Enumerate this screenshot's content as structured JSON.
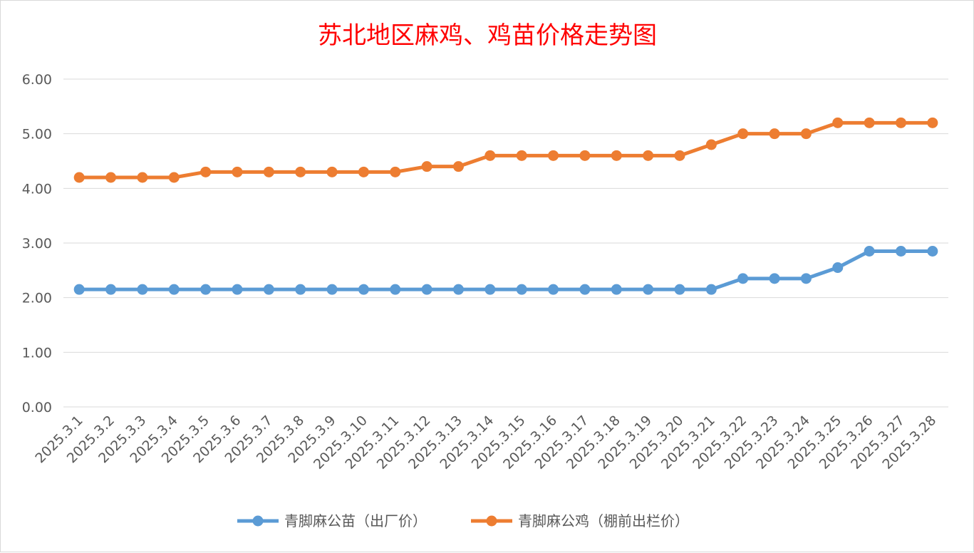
{
  "chart_data": {
    "type": "line",
    "title": "苏北地区麻鸡、鸡苗价格走势图",
    "xlabel": "",
    "ylabel": "",
    "ylim": [
      0,
      6
    ],
    "yticks": [
      "0.00",
      "1.00",
      "2.00",
      "3.00",
      "4.00",
      "5.00",
      "6.00"
    ],
    "grid": true,
    "legend_position": "bottom",
    "categories": [
      "2025.3.1",
      "2025.3.2",
      "2025.3.3",
      "2025.3.4",
      "2025.3.5",
      "2025.3.6",
      "2025.3.7",
      "2025.3.8",
      "2025.3.9",
      "2025.3.10",
      "2025.3.11",
      "2025.3.12",
      "2025.3.13",
      "2025.3.14",
      "2025.3.15",
      "2025.3.16",
      "2025.3.17",
      "2025.3.18",
      "2025.3.19",
      "2025.3.20",
      "2025.3.21",
      "2025.3.22",
      "2025.3.23",
      "2025.3.24",
      "2025.3.25",
      "2025.3.26",
      "2025.3.27",
      "2025.3.28"
    ],
    "series": [
      {
        "name": "青脚麻公苗（出厂价）",
        "color": "#5b9bd5",
        "values": [
          2.15,
          2.15,
          2.15,
          2.15,
          2.15,
          2.15,
          2.15,
          2.15,
          2.15,
          2.15,
          2.15,
          2.15,
          2.15,
          2.15,
          2.15,
          2.15,
          2.15,
          2.15,
          2.15,
          2.15,
          2.15,
          2.35,
          2.35,
          2.35,
          2.55,
          2.85,
          2.85,
          2.85
        ]
      },
      {
        "name": "青脚麻公鸡（棚前出栏价）",
        "color": "#ed7d31",
        "values": [
          4.2,
          4.2,
          4.2,
          4.2,
          4.3,
          4.3,
          4.3,
          4.3,
          4.3,
          4.3,
          4.3,
          4.4,
          4.4,
          4.6,
          4.6,
          4.6,
          4.6,
          4.6,
          4.6,
          4.6,
          4.8,
          5.0,
          5.0,
          5.0,
          5.2,
          5.2,
          5.2,
          5.2
        ]
      }
    ]
  }
}
